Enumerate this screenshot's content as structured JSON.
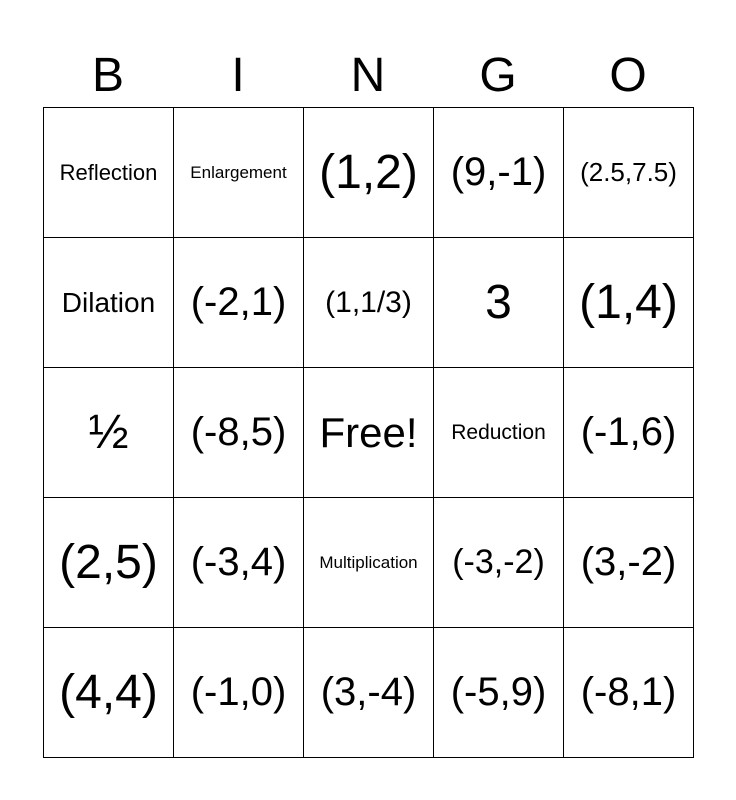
{
  "header": [
    "B",
    "I",
    "N",
    "G",
    "O"
  ],
  "cells": [
    [
      "Reflection",
      "Enlargement",
      "(1,2)",
      "(9,-1)",
      "(2.5,7.5)"
    ],
    [
      "Dilation",
      "(-2,1)",
      "(1,1/3)",
      "3",
      "(1,4)"
    ],
    [
      "½",
      "(-8,5)",
      "Free!",
      "Reduction",
      "(-1,6)"
    ],
    [
      "(2,5)",
      "(-3,4)",
      "Multiplication",
      "(-3,-2)",
      "(3,-2)"
    ],
    [
      "(4,4)",
      "(-1,0)",
      "(3,-4)",
      "(-5,9)",
      "(-8,1)"
    ]
  ]
}
